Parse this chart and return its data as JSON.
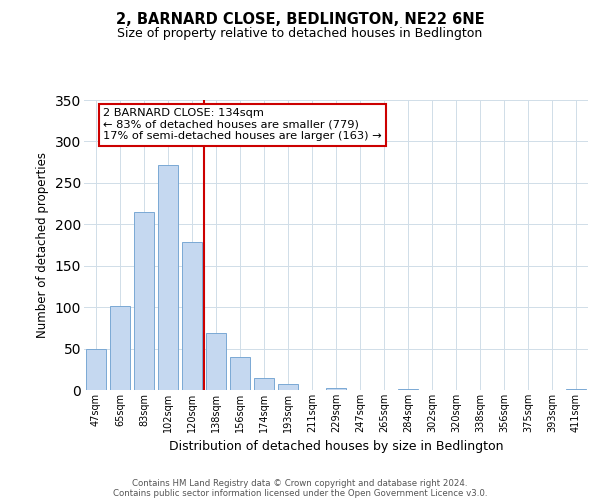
{
  "title": "2, BARNARD CLOSE, BEDLINGTON, NE22 6NE",
  "subtitle": "Size of property relative to detached houses in Bedlington",
  "xlabel": "Distribution of detached houses by size in Bedlington",
  "ylabel": "Number of detached properties",
  "bar_labels": [
    "47sqm",
    "65sqm",
    "83sqm",
    "102sqm",
    "120sqm",
    "138sqm",
    "156sqm",
    "174sqm",
    "193sqm",
    "211sqm",
    "229sqm",
    "247sqm",
    "265sqm",
    "284sqm",
    "302sqm",
    "320sqm",
    "338sqm",
    "356sqm",
    "375sqm",
    "393sqm",
    "411sqm"
  ],
  "bar_values": [
    49,
    101,
    215,
    272,
    179,
    69,
    40,
    14,
    7,
    0,
    2,
    0,
    0,
    1,
    0,
    0,
    0,
    0,
    0,
    0,
    1
  ],
  "bar_color": "#c5d8f0",
  "bar_edge_color": "#7aa8d4",
  "vline_x_idx": 5,
  "vline_color": "#cc0000",
  "annot_line1": "2 BARNARD CLOSE: 134sqm",
  "annot_line2": "← 83% of detached houses are smaller (779)",
  "annot_line3": "17% of semi-detached houses are larger (163) →",
  "annotation_box_color": "#cc0000",
  "ylim": [
    0,
    350
  ],
  "yticks": [
    0,
    50,
    100,
    150,
    200,
    250,
    300,
    350
  ],
  "footer_line1": "Contains HM Land Registry data © Crown copyright and database right 2024.",
  "footer_line2": "Contains public sector information licensed under the Open Government Licence v3.0.",
  "background_color": "#ffffff",
  "grid_color": "#d0dde8",
  "title_fontsize": 10.5,
  "subtitle_fontsize": 9,
  "ylabel_fontsize": 8.5,
  "xlabel_fontsize": 9
}
